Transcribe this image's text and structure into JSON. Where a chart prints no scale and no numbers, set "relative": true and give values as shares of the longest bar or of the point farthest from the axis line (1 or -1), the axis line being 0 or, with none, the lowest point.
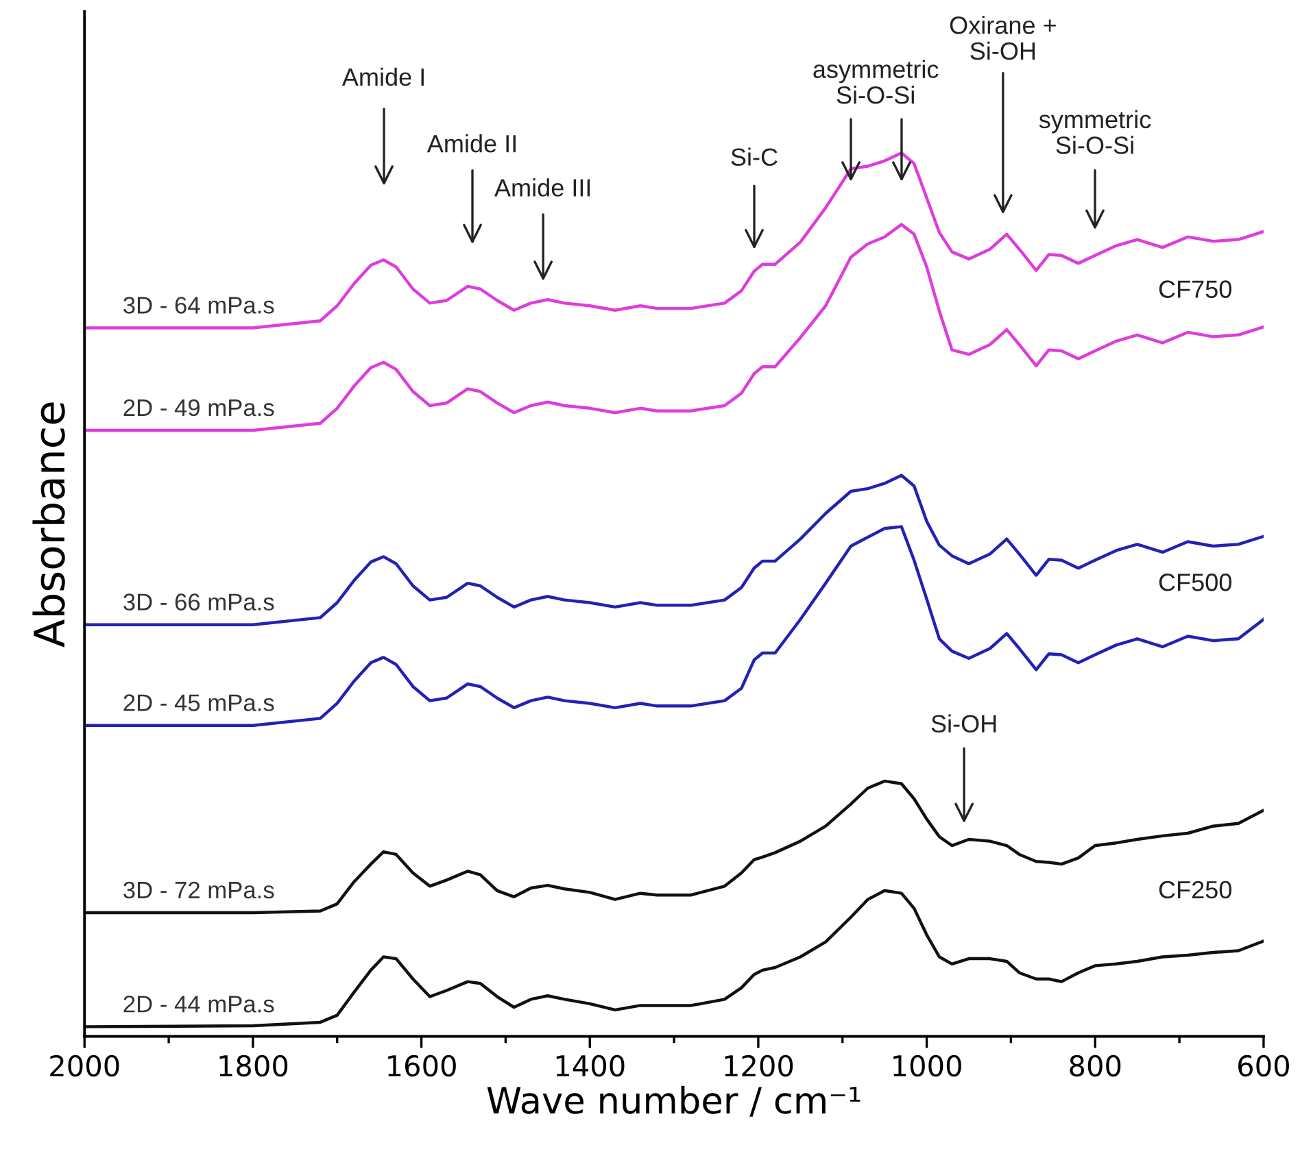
{
  "chart_data": {
    "type": "line",
    "relative": true,
    "xlabel": "Wave number / cm⁻¹",
    "ylabel": "Absorbance",
    "x": [
      2000,
      1800,
      1720,
      1700,
      1680,
      1660,
      1645,
      1630,
      1610,
      1590,
      1570,
      1545,
      1530,
      1510,
      1490,
      1470,
      1450,
      1430,
      1400,
      1370,
      1340,
      1320,
      1280,
      1240,
      1220,
      1205,
      1195,
      1180,
      1150,
      1120,
      1090,
      1070,
      1050,
      1030,
      1015,
      1000,
      985,
      970,
      950,
      925,
      905,
      890,
      870,
      855,
      840,
      820,
      800,
      775,
      750,
      720,
      690,
      660,
      630,
      600
    ],
    "xlim": [
      2000,
      600
    ],
    "xticks": [
      2000,
      {
        "value": 1900,
        "label": null
      },
      1800,
      {
        "value": 1700,
        "label": null
      },
      1600,
      {
        "value": 1500,
        "label": null
      },
      1400,
      {
        "value": 1300,
        "label": null
      },
      1200,
      {
        "value": 1100,
        "label": null
      },
      1000,
      {
        "value": 900,
        "label": null
      },
      800,
      {
        "value": 700,
        "label": null
      },
      600
    ],
    "tick_labels": "x",
    "grid": false,
    "legend": false,
    "marker": "none",
    "line_style": "solid",
    "series": [
      {
        "name": "3D - 64 mPa.s",
        "color": "#dd3ddd",
        "values": [
          0.802,
          0.802,
          0.81,
          0.827,
          0.852,
          0.873,
          0.879,
          0.871,
          0.846,
          0.83,
          0.833,
          0.849,
          0.846,
          0.833,
          0.822,
          0.83,
          0.834,
          0.83,
          0.827,
          0.822,
          0.827,
          0.824,
          0.824,
          0.83,
          0.844,
          0.866,
          0.874,
          0.874,
          0.899,
          0.938,
          0.982,
          0.985,
          0.991,
          1.0,
          0.988,
          0.949,
          0.91,
          0.888,
          0.88,
          0.891,
          0.908,
          0.891,
          0.867,
          0.885,
          0.884,
          0.875,
          0.884,
          0.895,
          0.902,
          0.893,
          0.905,
          0.9,
          0.902,
          0.911
        ]
      },
      {
        "name": "2D - 49 mPa.s",
        "color": "#dd3ddd",
        "values": [
          0.686,
          0.686,
          0.694,
          0.711,
          0.736,
          0.757,
          0.763,
          0.755,
          0.73,
          0.714,
          0.717,
          0.733,
          0.73,
          0.717,
          0.706,
          0.714,
          0.718,
          0.714,
          0.711,
          0.706,
          0.711,
          0.708,
          0.708,
          0.714,
          0.728,
          0.75,
          0.758,
          0.758,
          0.791,
          0.827,
          0.882,
          0.897,
          0.905,
          0.919,
          0.908,
          0.871,
          0.821,
          0.777,
          0.772,
          0.783,
          0.8,
          0.783,
          0.759,
          0.777,
          0.776,
          0.767,
          0.776,
          0.787,
          0.794,
          0.785,
          0.797,
          0.792,
          0.794,
          0.803
        ]
      },
      {
        "name": "3D - 66 mPa.s",
        "color": "#2222b4",
        "values": [
          0.466,
          0.466,
          0.474,
          0.491,
          0.516,
          0.537,
          0.543,
          0.535,
          0.51,
          0.494,
          0.497,
          0.513,
          0.51,
          0.497,
          0.486,
          0.494,
          0.498,
          0.494,
          0.491,
          0.486,
          0.491,
          0.488,
          0.488,
          0.494,
          0.508,
          0.53,
          0.538,
          0.538,
          0.563,
          0.592,
          0.617,
          0.62,
          0.626,
          0.635,
          0.623,
          0.583,
          0.556,
          0.544,
          0.535,
          0.546,
          0.563,
          0.546,
          0.522,
          0.54,
          0.539,
          0.53,
          0.539,
          0.55,
          0.557,
          0.548,
          0.56,
          0.555,
          0.557,
          0.566
        ]
      },
      {
        "name": "2D - 45 mPa.s",
        "color": "#2222b4",
        "values": [
          0.352,
          0.352,
          0.36,
          0.377,
          0.402,
          0.423,
          0.429,
          0.421,
          0.396,
          0.38,
          0.383,
          0.399,
          0.396,
          0.383,
          0.372,
          0.38,
          0.384,
          0.38,
          0.377,
          0.372,
          0.377,
          0.374,
          0.374,
          0.38,
          0.394,
          0.426,
          0.434,
          0.434,
          0.472,
          0.513,
          0.555,
          0.565,
          0.575,
          0.577,
          0.539,
          0.495,
          0.45,
          0.436,
          0.428,
          0.439,
          0.456,
          0.439,
          0.415,
          0.433,
          0.432,
          0.423,
          0.432,
          0.443,
          0.45,
          0.441,
          0.453,
          0.448,
          0.45,
          0.472
        ]
      },
      {
        "name": "3D - 72 mPa.s",
        "color": "#111111",
        "values": [
          0.14,
          0.14,
          0.142,
          0.15,
          0.175,
          0.195,
          0.209,
          0.206,
          0.185,
          0.17,
          0.177,
          0.187,
          0.183,
          0.165,
          0.158,
          0.168,
          0.171,
          0.167,
          0.163,
          0.155,
          0.162,
          0.16,
          0.16,
          0.17,
          0.185,
          0.2,
          0.203,
          0.208,
          0.221,
          0.238,
          0.263,
          0.281,
          0.289,
          0.286,
          0.269,
          0.246,
          0.226,
          0.216,
          0.223,
          0.221,
          0.216,
          0.206,
          0.198,
          0.197,
          0.195,
          0.202,
          0.216,
          0.219,
          0.223,
          0.227,
          0.23,
          0.238,
          0.241,
          0.256
        ]
      },
      {
        "name": "2D - 44 mPa.s",
        "color": "#111111",
        "values": [
          0.011,
          0.012,
          0.016,
          0.024,
          0.05,
          0.075,
          0.09,
          0.088,
          0.065,
          0.045,
          0.052,
          0.062,
          0.06,
          0.045,
          0.033,
          0.042,
          0.046,
          0.042,
          0.037,
          0.03,
          0.035,
          0.035,
          0.035,
          0.042,
          0.055,
          0.07,
          0.075,
          0.078,
          0.09,
          0.107,
          0.135,
          0.155,
          0.165,
          0.162,
          0.145,
          0.115,
          0.09,
          0.082,
          0.088,
          0.088,
          0.085,
          0.072,
          0.065,
          0.065,
          0.062,
          0.072,
          0.08,
          0.082,
          0.085,
          0.09,
          0.092,
          0.095,
          0.097,
          0.108
        ]
      }
    ],
    "annotations": [
      "Amide I",
      "Amide II",
      "Amide III",
      "Si-C",
      "asymmetric\nSi-O-Si",
      "Oxirane +\nSi-OH",
      "symmetric\nSi-O-Si",
      "Si-OH",
      "CF750",
      "CF500",
      "CF250"
    ]
  }
}
